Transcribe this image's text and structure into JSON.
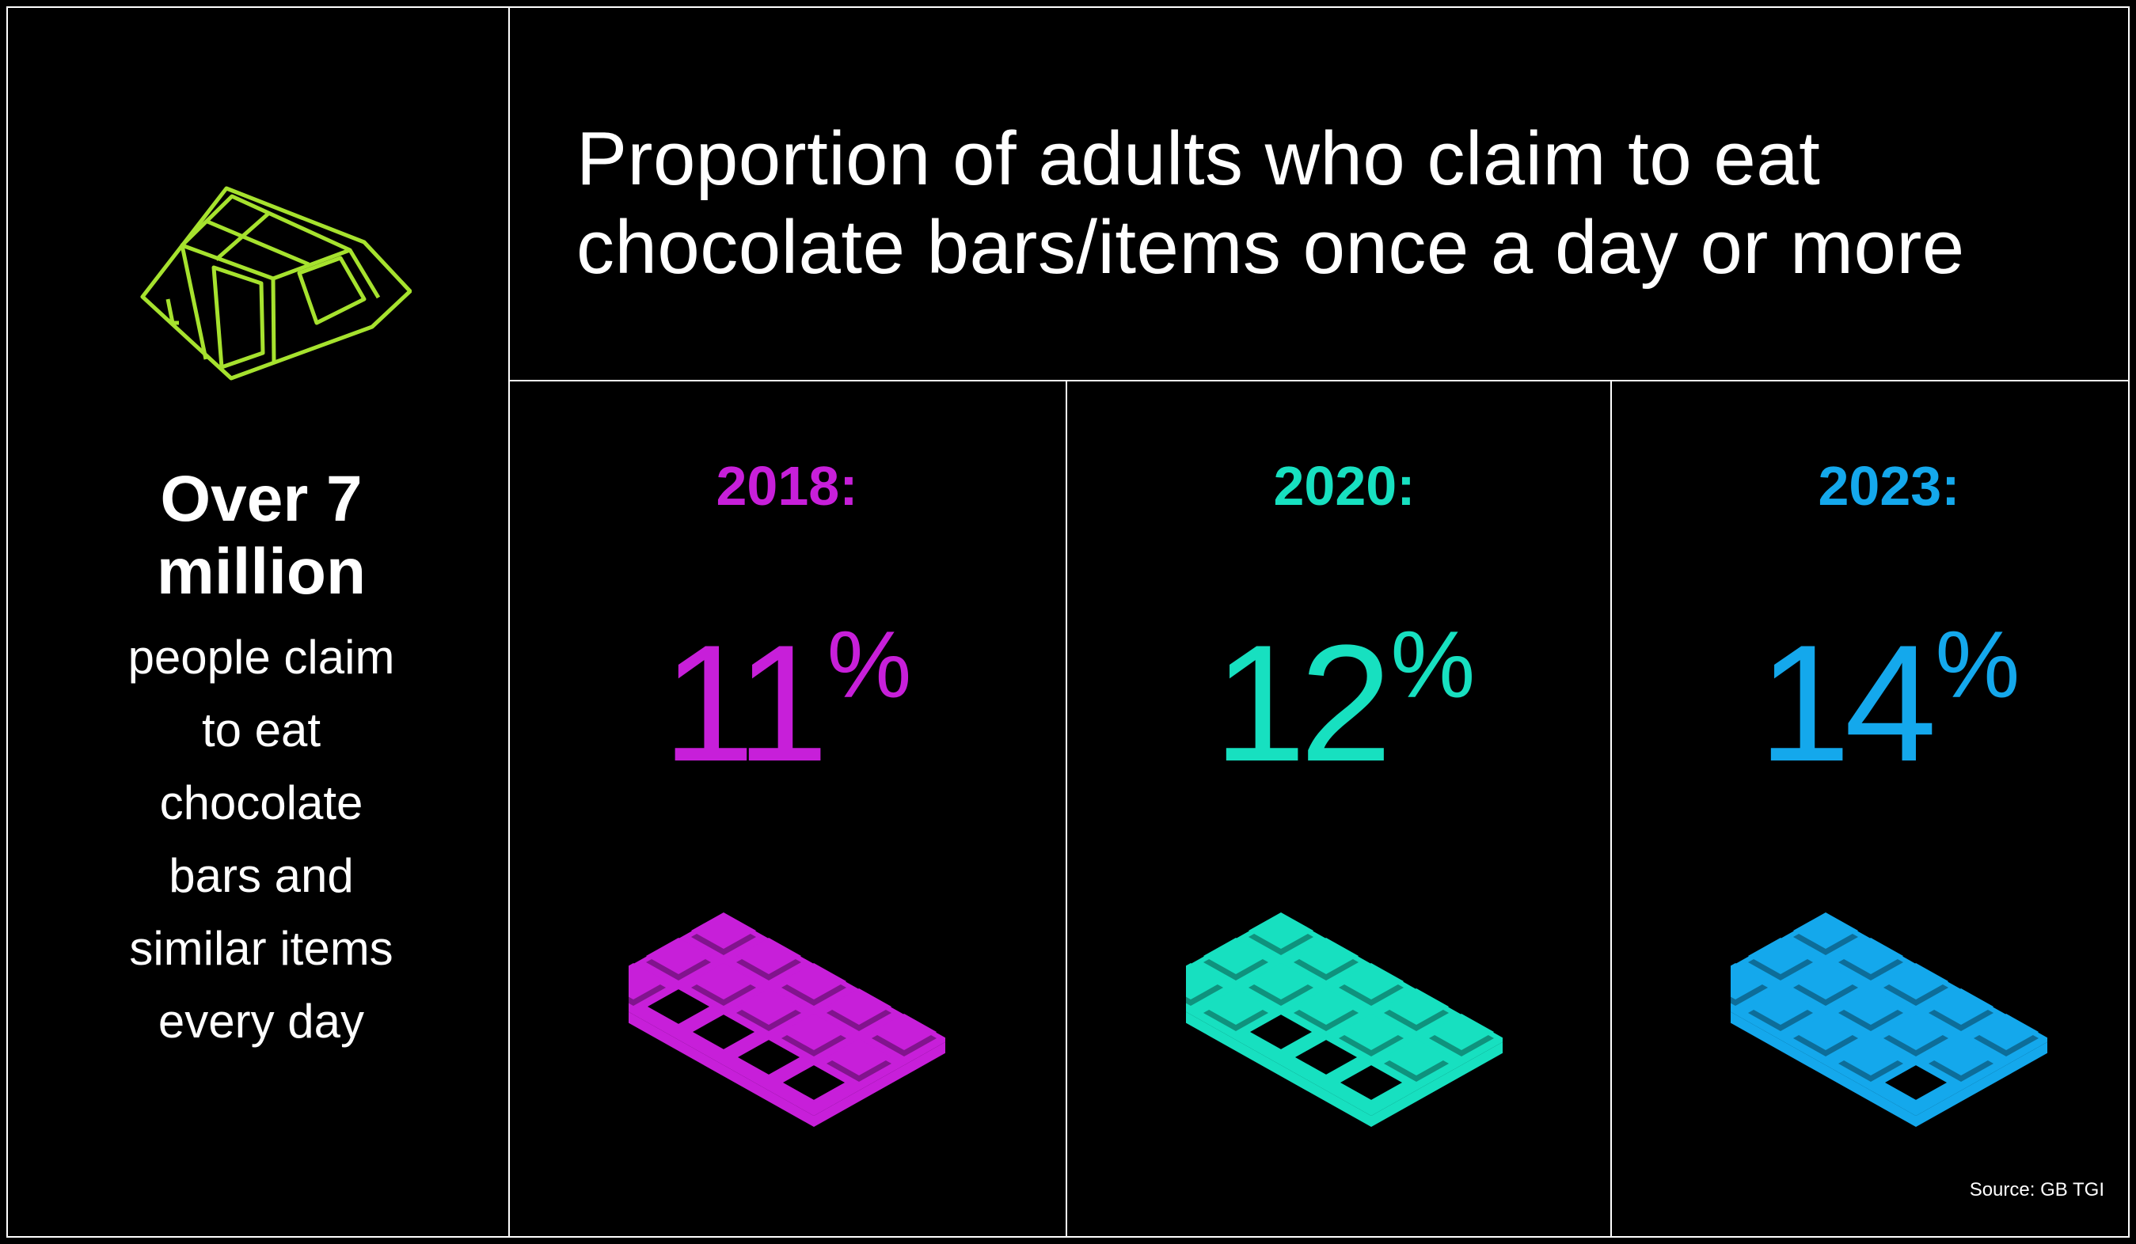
{
  "left": {
    "headline_line1": "Over 7",
    "headline_line2": "million",
    "body_lines": [
      "people claim",
      "to eat",
      "chocolate",
      "bars and",
      "similar items",
      "every day"
    ],
    "icon": "chocolate-block-icon",
    "icon_color": "#a6e22e"
  },
  "title_line1": "Proportion of adults who claim to eat",
  "title_line2": "chocolate bars/items once a day or more",
  "panels": [
    {
      "year": "2018:",
      "value": "11",
      "unit": "%",
      "color": "#c71fd9",
      "icon": "chocolate-bar-icon",
      "bitten_squares": 4
    },
    {
      "year": "2020:",
      "value": "12",
      "unit": "%",
      "color": "#17e0c0",
      "icon": "chocolate-bar-icon",
      "bitten_squares": 3
    },
    {
      "year": "2023:",
      "value": "14",
      "unit": "%",
      "color": "#14a8ec",
      "icon": "chocolate-bar-icon",
      "bitten_squares": 1
    }
  ],
  "source": "Source: GB TGI"
}
